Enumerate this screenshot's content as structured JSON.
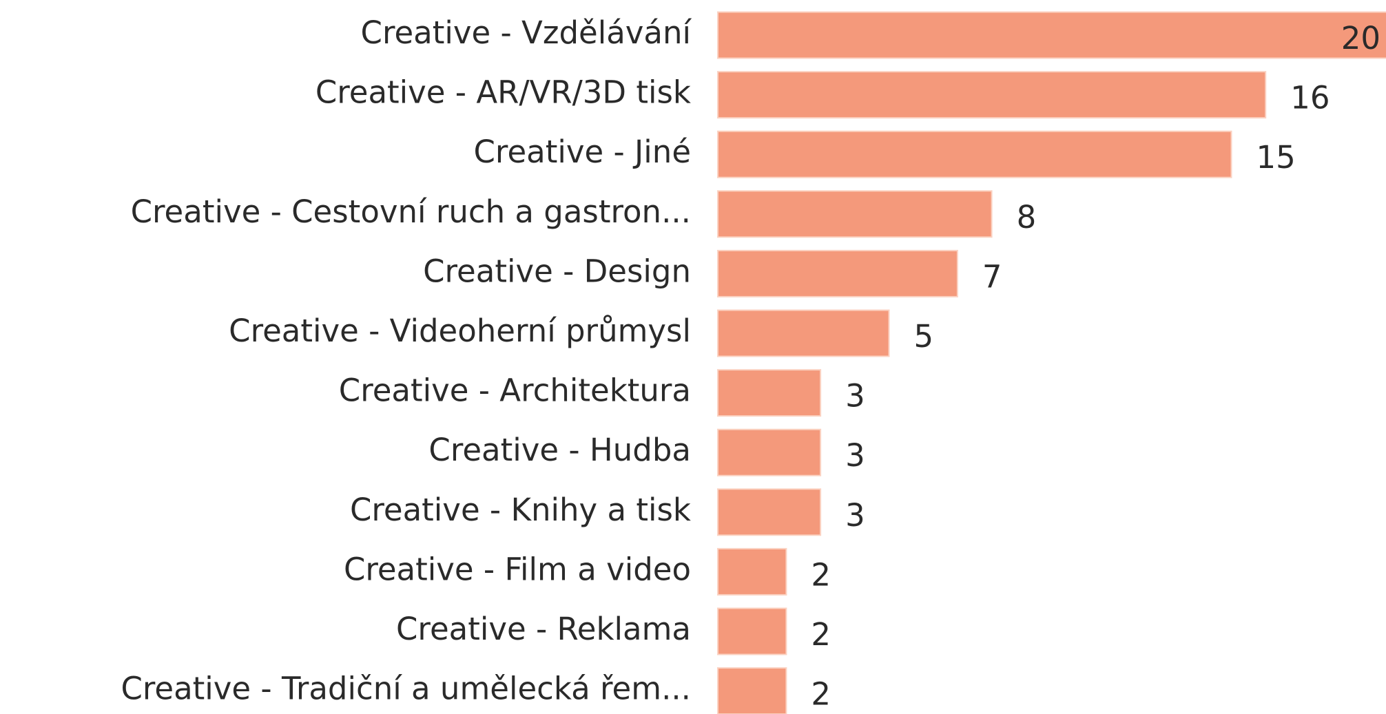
{
  "chart_data": {
    "type": "bar",
    "orientation": "horizontal",
    "categories": [
      "Creative - Vzdělávání",
      "Creative - AR/VR/3D tisk",
      "Creative - Jiné",
      "Creative - Cestovní ruch a gastron...",
      "Creative - Design",
      "Creative - Videoherní průmysl",
      "Creative - Architektura",
      "Creative - Hudba",
      "Creative - Knihy a tisk",
      "Creative - Film a video",
      "Creative - Reklama",
      "Creative - Tradiční a umělecká řem..."
    ],
    "values": [
      20,
      16,
      15,
      8,
      7,
      5,
      3,
      3,
      3,
      2,
      2,
      2
    ],
    "color": "#f4997b"
  }
}
